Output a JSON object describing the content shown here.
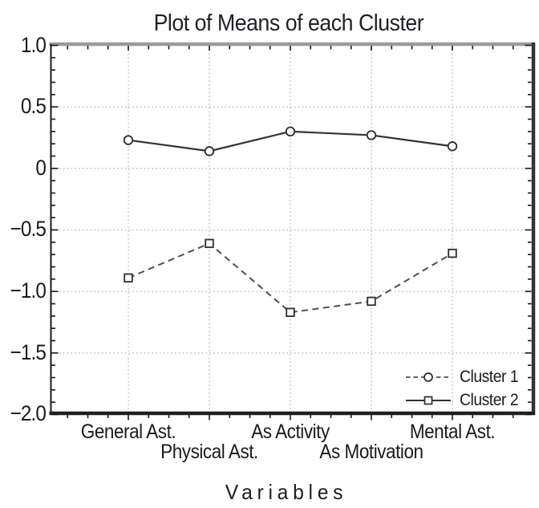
{
  "title": "Plot of Means of each Cluster",
  "chart_data": {
    "type": "line",
    "title": "Plot of Means of each Cluster",
    "xlabel": "Variables",
    "ylabel": "",
    "categories": [
      "General Ast.",
      "Physical Ast.",
      "As Activity",
      "As Motivation",
      "Mental Ast."
    ],
    "category_label_rows": [
      1,
      2,
      1,
      2,
      1
    ],
    "ylim": [
      -2.0,
      1.0
    ],
    "ytick_step": 0.5,
    "yticks": [
      {
        "v": 1.0,
        "label": "1.0"
      },
      {
        "v": 0.5,
        "label": "0.5"
      },
      {
        "v": 0.0,
        "label": "0"
      },
      {
        "v": -0.5,
        "label": "−0.5"
      },
      {
        "v": -1.0,
        "label": "−1.0"
      },
      {
        "v": -1.5,
        "label": "−1.5"
      },
      {
        "v": -2.0,
        "label": "−2.0"
      }
    ],
    "grid": "dotted gridlines at major ticks, both axes",
    "legend_position": "inside bottom-right",
    "series": [
      {
        "name": "Cluster 1",
        "marker": "circle",
        "plotted_line_style": "solid",
        "legend_line_style": "dashed",
        "values": [
          0.23,
          0.14,
          0.3,
          0.27,
          0.18
        ]
      },
      {
        "name": "Cluster 2",
        "marker": "square",
        "plotted_line_style": "dashed",
        "legend_line_style": "solid",
        "values": [
          -0.89,
          -0.61,
          -1.17,
          -1.08,
          -0.69
        ]
      }
    ]
  },
  "colors": {
    "background": "#ffffff",
    "text": "#1b1b1b",
    "solid_line": "#333333",
    "dashed_line": "#4f4f4f",
    "marker_stroke": "#2d2d2d",
    "marker_fill": "#ffffff",
    "gridline": "#b8b8b8",
    "frame_top": "#9a9a9a",
    "frame_right": "#333333",
    "frame_bottom": "#1f1f1f",
    "frame_left": "#1a1a1a"
  }
}
